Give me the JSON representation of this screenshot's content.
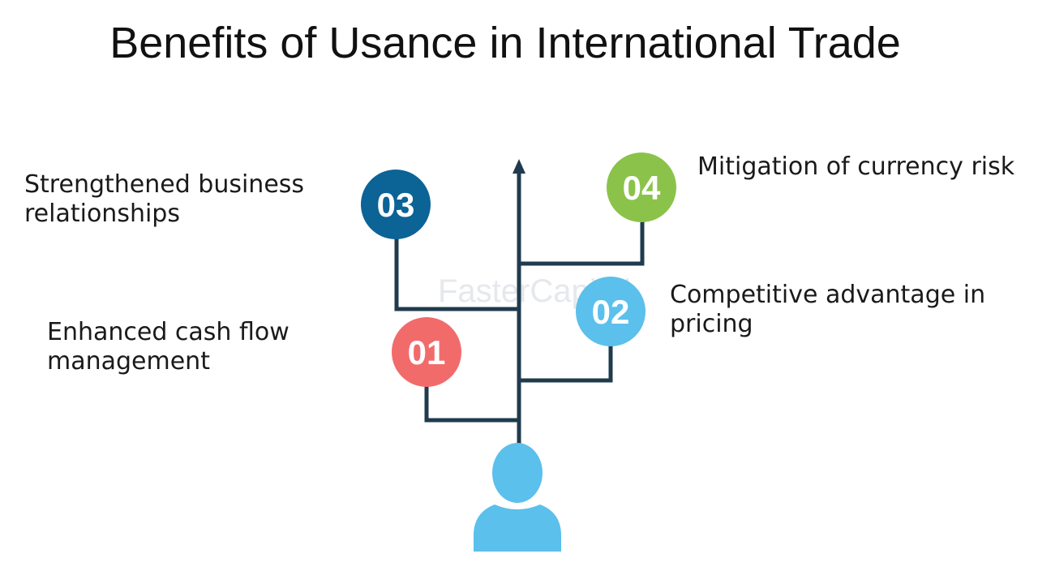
{
  "title": "Benefits of Usance in International Trade",
  "steps": [
    {
      "number": "01",
      "label": "Enhanced cash flow management",
      "color": "#F26B6B"
    },
    {
      "number": "02",
      "label": "Competitive advantage in pricing",
      "color": "#5BC0EB"
    },
    {
      "number": "03",
      "label": "Strengthened business relationships",
      "color": "#0B6396"
    },
    {
      "number": "04",
      "label": "Mitigation of currency risk",
      "color": "#8BC34A"
    }
  ],
  "line_color": "#1F3B4D",
  "person_color": "#5BC0EB",
  "watermark": "FasterCapital"
}
